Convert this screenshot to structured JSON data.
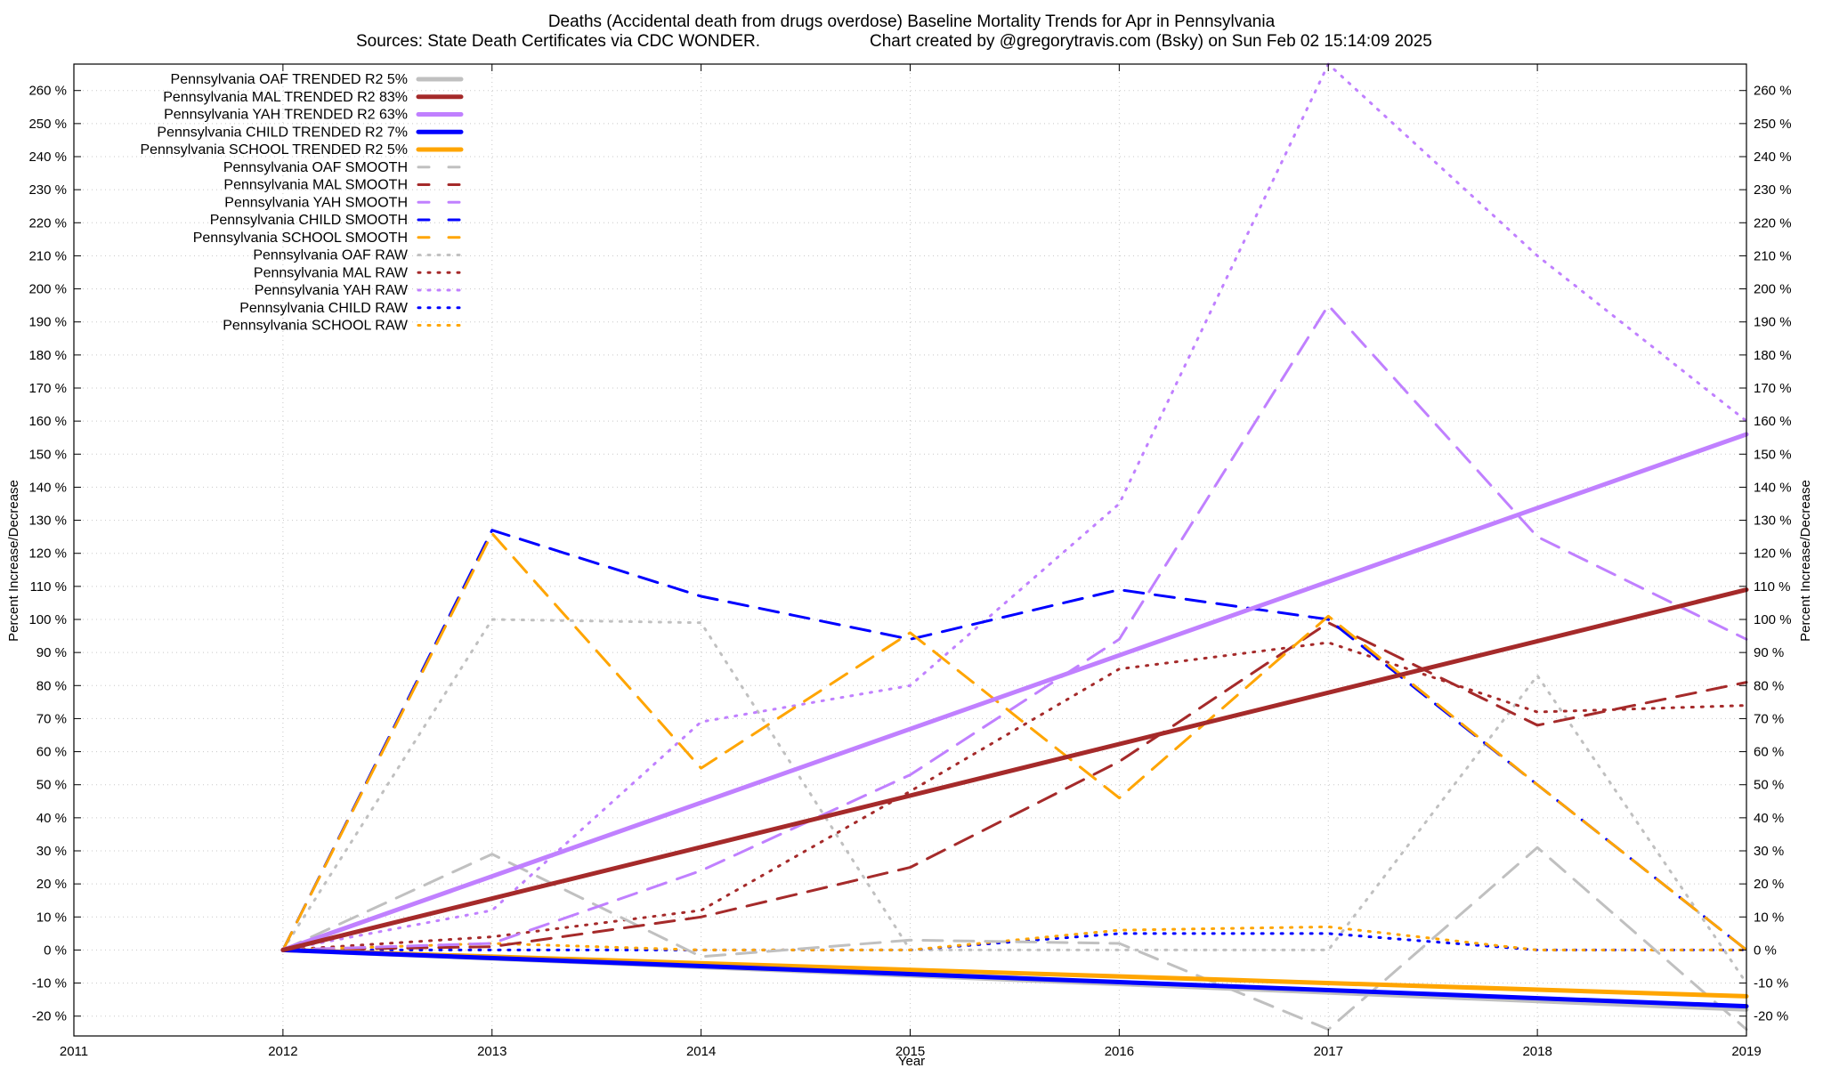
{
  "chart_data": {
    "type": "line",
    "title": "Deaths (Accidental death from drugs overdose)  Baseline Mortality Trends for Apr in Pennsylvania",
    "subtitle_left": "Sources: State Death Certificates via CDC WONDER.",
    "subtitle_right": "Chart created by @gregorytravis.com (Bsky) on Sun Feb 02 15:14:09 2025",
    "xlabel": "Year",
    "ylabel": "Percent Increase/Decrease",
    "xlim": [
      2011,
      2019
    ],
    "ylim": [
      -26,
      268
    ],
    "x_ticks": [
      "2011",
      "2012",
      "2013",
      "2014",
      "2015",
      "2016",
      "2017",
      "2018",
      "2019"
    ],
    "y_ticks": [
      "-20 %",
      "-10 %",
      "0 %",
      "10 %",
      "20 %",
      "30 %",
      "40 %",
      "50 %",
      "60 %",
      "70 %",
      "80 %",
      "90 %",
      "100 %",
      "110 %",
      "120 %",
      "130 %",
      "140 %",
      "150 %",
      "160 %",
      "170 %",
      "180 %",
      "190 %",
      "200 %",
      "210 %",
      "220 %",
      "230 %",
      "240 %",
      "250 %",
      "260 %"
    ],
    "y_tick_values": [
      -20,
      -10,
      0,
      10,
      20,
      30,
      40,
      50,
      60,
      70,
      80,
      90,
      100,
      110,
      120,
      130,
      140,
      150,
      160,
      170,
      180,
      190,
      200,
      210,
      220,
      230,
      240,
      250,
      260
    ],
    "grid": true,
    "legend_position": "top-left",
    "series": [
      {
        "name": "Pennsylvania OAF TRENDED R2  5%",
        "style": "solid",
        "color": "#c0c0c0",
        "x": [
          2012,
          2019
        ],
        "y": [
          0,
          -18
        ]
      },
      {
        "name": "Pennsylvania MAL TRENDED R2  83%",
        "style": "solid",
        "color": "#a52a2a",
        "x": [
          2012,
          2019
        ],
        "y": [
          0,
          109
        ]
      },
      {
        "name": "Pennsylvania YAH TRENDED R2  63%",
        "style": "solid",
        "color": "#c080ff",
        "x": [
          2012,
          2019
        ],
        "y": [
          0,
          156
        ]
      },
      {
        "name": "Pennsylvania CHILD TRENDED R2  7%",
        "style": "solid",
        "color": "#0000ff",
        "x": [
          2012,
          2019
        ],
        "y": [
          0,
          -17
        ]
      },
      {
        "name": "Pennsylvania SCHOOL TRENDED R2  5%",
        "style": "solid",
        "color": "#ffa500",
        "x": [
          2012,
          2019
        ],
        "y": [
          0,
          -14
        ]
      },
      {
        "name": "Pennsylvania OAF SMOOTH",
        "style": "dashed",
        "color": "#c0c0c0",
        "x": [
          2012,
          2013,
          2014,
          2015,
          2016,
          2017,
          2018,
          2019
        ],
        "y": [
          0,
          29,
          -2,
          3,
          2,
          -24,
          31,
          -24
        ]
      },
      {
        "name": "Pennsylvania MAL SMOOTH",
        "style": "dashed",
        "color": "#a52a2a",
        "x": [
          2012,
          2013,
          2014,
          2015,
          2016,
          2017,
          2018,
          2019
        ],
        "y": [
          0,
          1,
          10,
          25,
          57,
          99,
          68,
          81
        ]
      },
      {
        "name": "Pennsylvania YAH SMOOTH",
        "style": "dashed",
        "color": "#c080ff",
        "x": [
          2012,
          2013,
          2014,
          2015,
          2016,
          2017,
          2018,
          2019
        ],
        "y": [
          0,
          2,
          24,
          53,
          94,
          195,
          125,
          94
        ]
      },
      {
        "name": "Pennsylvania CHILD SMOOTH",
        "style": "dashed",
        "color": "#0000ff",
        "x": [
          2012,
          2013,
          2014,
          2015,
          2016,
          2017,
          2018,
          2019
        ],
        "y": [
          0,
          127,
          107,
          94,
          109,
          100,
          50,
          0
        ]
      },
      {
        "name": "Pennsylvania SCHOOL SMOOTH",
        "style": "dashed",
        "color": "#ffa500",
        "x": [
          2012,
          2013,
          2014,
          2015,
          2016,
          2017,
          2018,
          2019
        ],
        "y": [
          0,
          126,
          55,
          96,
          46,
          101,
          50,
          0
        ]
      },
      {
        "name": "Pennsylvania OAF RAW",
        "style": "dotted",
        "color": "#c0c0c0",
        "x": [
          2012,
          2013,
          2014,
          2015,
          2016,
          2017,
          2018,
          2019
        ],
        "y": [
          0,
          100,
          99,
          0,
          0,
          0,
          83,
          -10
        ]
      },
      {
        "name": "Pennsylvania MAL RAW",
        "style": "dotted",
        "color": "#a52a2a",
        "x": [
          2012,
          2013,
          2014,
          2015,
          2016,
          2017,
          2018,
          2019
        ],
        "y": [
          0,
          4,
          12,
          48,
          85,
          93,
          72,
          74
        ]
      },
      {
        "name": "Pennsylvania YAH RAW",
        "style": "dotted",
        "color": "#c080ff",
        "x": [
          2012,
          2013,
          2014,
          2015,
          2016,
          2017,
          2018,
          2019
        ],
        "y": [
          0,
          12,
          69,
          80,
          135,
          268,
          210,
          160
        ]
      },
      {
        "name": "Pennsylvania CHILD RAW",
        "style": "dotted",
        "color": "#0000ff",
        "x": [
          2012,
          2013,
          2014,
          2015,
          2016,
          2017,
          2018,
          2019
        ],
        "y": [
          0,
          0,
          0,
          0,
          5,
          5,
          0,
          0
        ]
      },
      {
        "name": "Pennsylvania SCHOOL RAW",
        "style": "dotted",
        "color": "#ffa500",
        "x": [
          2012,
          2013,
          2014,
          2015,
          2016,
          2017,
          2018,
          2019
        ],
        "y": [
          0,
          2,
          0,
          0,
          6,
          7,
          0,
          0
        ]
      }
    ]
  }
}
